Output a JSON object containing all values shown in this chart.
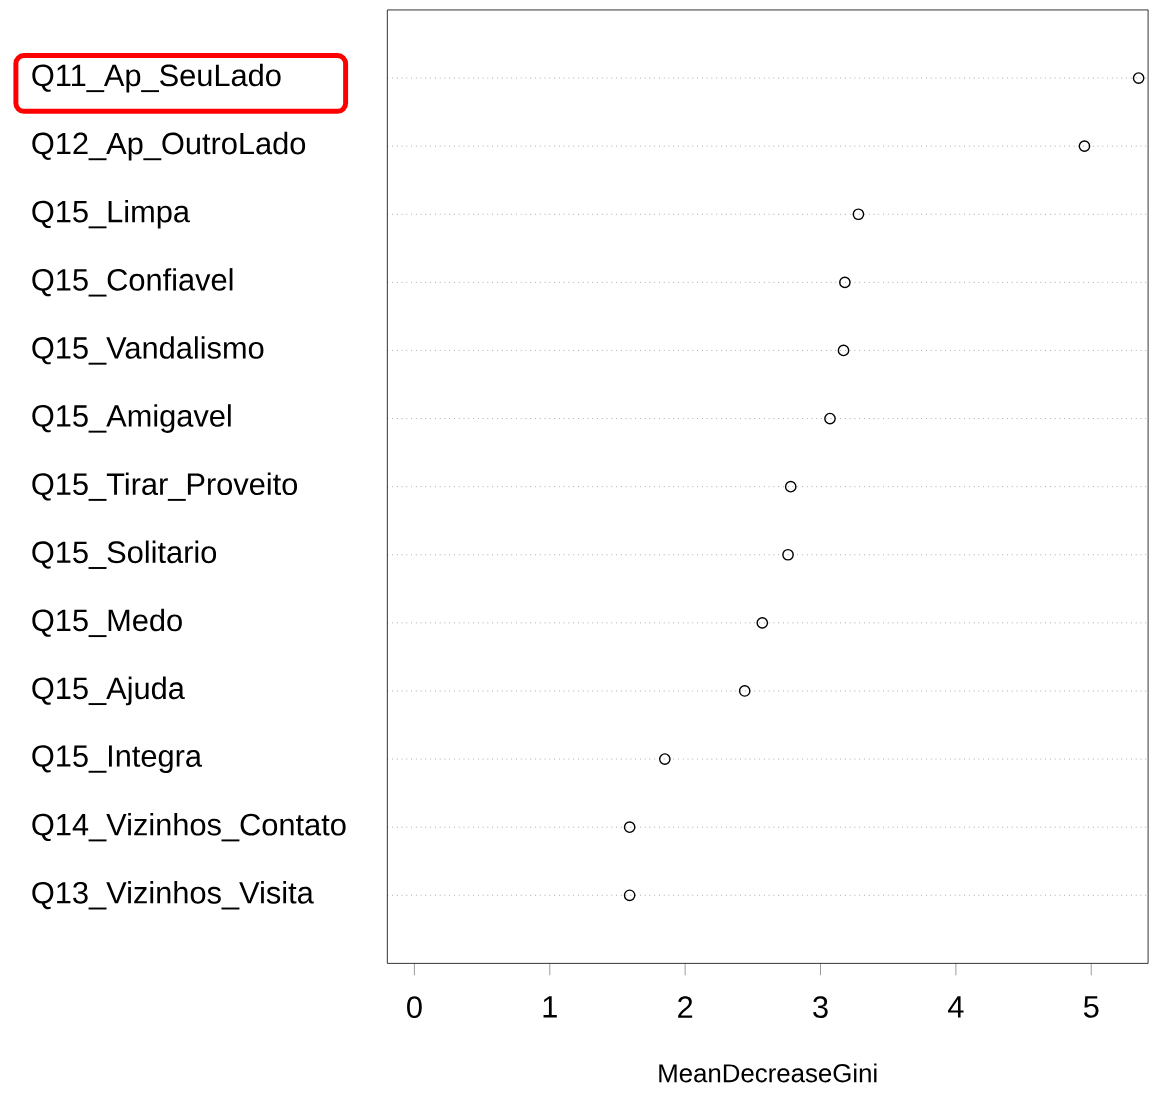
{
  "chart_data": {
    "type": "scatter",
    "orientation": "horizontal",
    "xlabel": "MeanDecreaseGini",
    "categories": [
      "Q11_Ap_SeuLado",
      "Q12_Ap_OutroLado",
      "Q15_Limpa",
      "Q15_Confiavel",
      "Q15_Vandalismo",
      "Q15_Amigavel",
      "Q15_Tirar_Proveito",
      "Q15_Solitario",
      "Q15_Medo",
      "Q15_Ajuda",
      "Q15_Integra",
      "Q14_Vizinhos_Contato",
      "Q13_Vizinhos_Visita"
    ],
    "values": [
      5.35,
      4.95,
      3.28,
      3.18,
      3.17,
      3.07,
      2.78,
      2.76,
      2.57,
      2.44,
      1.85,
      1.59,
      1.59
    ],
    "color": "#000000",
    "marker": "circle",
    "grid": "y",
    "xlim": [
      -0.2,
      5.42
    ],
    "xticks": [
      0,
      1,
      2,
      3,
      4,
      5
    ]
  }
}
